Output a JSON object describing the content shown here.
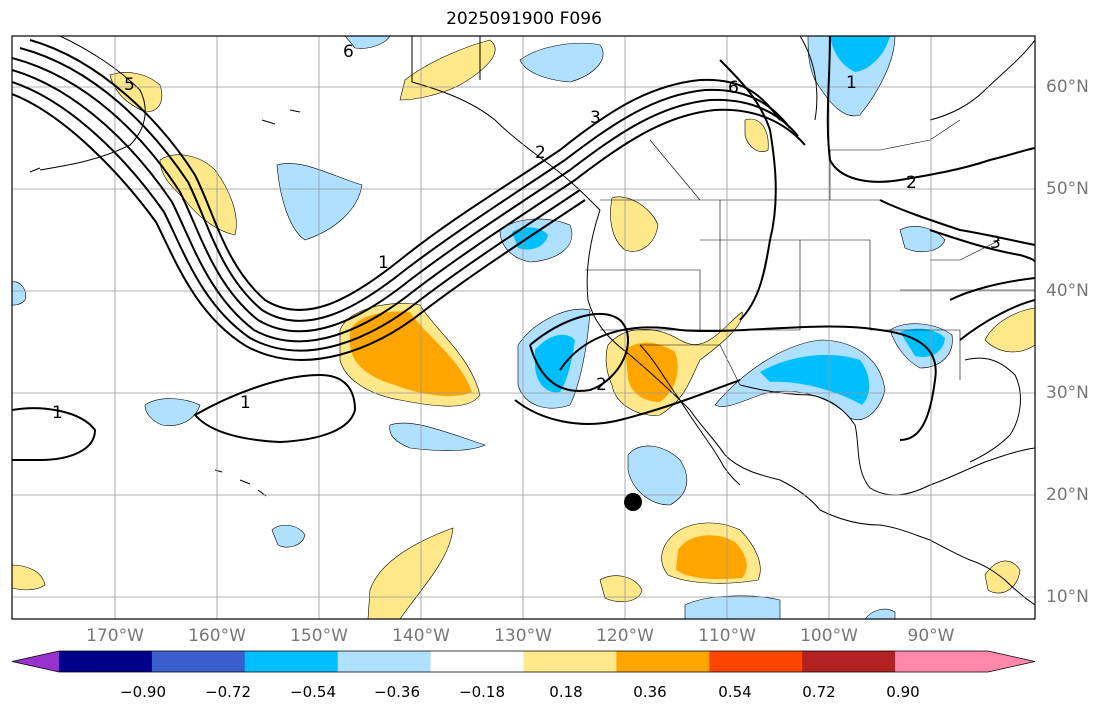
{
  "title": "2025091900 F096",
  "lat_labels": [
    "60°N",
    "50°N",
    "40°N",
    "30°N",
    "20°N",
    "10°N"
  ],
  "lon_labels": [
    "170°W",
    "160°W",
    "150°W",
    "140°W",
    "130°W",
    "120°W",
    "110°W",
    "100°W",
    "90°W"
  ],
  "contour_labels": [
    "1",
    "1",
    "1",
    "2",
    "2",
    "3",
    "3",
    "5",
    "6",
    "6",
    "1",
    "2"
  ],
  "colorbar": {
    "ticks": [
      "−0.90",
      "−0.72",
      "−0.54",
      "−0.36",
      "−0.18",
      "0.18",
      "0.36",
      "0.54",
      "0.72",
      "0.90"
    ],
    "colors": [
      "#9932cc",
      "#00008b",
      "#3a5fcd",
      "#00bfff",
      "#b0e0ff",
      "#ffffff",
      "#ffe88a",
      "#ffa500",
      "#ff4500",
      "#b22222",
      "#ff88aa",
      "#ff88aa"
    ]
  },
  "marker": "storm-center-dot"
}
